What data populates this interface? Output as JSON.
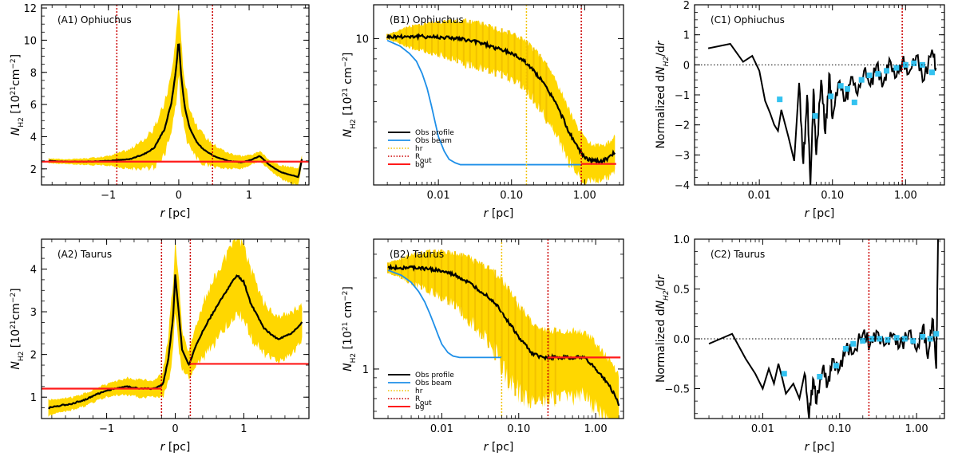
{
  "figure": {
    "colors": {
      "band": "#FFD700",
      "profile": "#000000",
      "beam": "#1E8FE8",
      "bg": "#FF1A1A",
      "rout": "#CC0000",
      "hr": "#F2C200",
      "deriv": "#000000",
      "binned": "#33C2F0"
    }
  },
  "chart_data": [
    {
      "id": "A1",
      "type": "line",
      "title": "(A1) Ophiuchus",
      "xlabel": "r [pc]",
      "ylabel": "N_H2 [10^21 cm^-2]",
      "xlog": false,
      "ylog": false,
      "xlim": [
        -1.95,
        1.85
      ],
      "ylim": [
        1.0,
        12.2
      ],
      "xticks": [
        -1,
        0,
        1
      ],
      "xtick_labels": [
        "−1",
        "0",
        "1"
      ],
      "yticks": [
        2,
        4,
        6,
        8,
        10,
        12
      ],
      "ytick_labels": [
        "2",
        "4",
        "6",
        "8",
        "10",
        "12"
      ],
      "series": [
        {
          "name": "Obs profile",
          "x": [
            -1.85,
            -1.6,
            -1.3,
            -1.0,
            -0.7,
            -0.5,
            -0.35,
            -0.2,
            -0.1,
            -0.03,
            0.0,
            0.03,
            0.08,
            0.15,
            0.25,
            0.35,
            0.5,
            0.7,
            0.9,
            1.05,
            1.15,
            1.3,
            1.45,
            1.6,
            1.7,
            1.75
          ],
          "y": [
            2.5,
            2.45,
            2.45,
            2.5,
            2.6,
            2.9,
            3.3,
            4.5,
            6.2,
            8.5,
            10.2,
            8.0,
            6.0,
            4.6,
            3.7,
            3.2,
            2.8,
            2.5,
            2.4,
            2.6,
            2.8,
            2.2,
            1.8,
            1.6,
            1.5,
            2.6
          ],
          "err": [
            0.15,
            0.15,
            0.2,
            0.3,
            0.6,
            0.9,
            1.2,
            1.6,
            1.8,
            2.2,
            2.4,
            2.0,
            1.7,
            1.3,
            1.0,
            0.9,
            0.7,
            0.5,
            0.4,
            0.3,
            0.3,
            0.3,
            0.4,
            0.5,
            0.6,
            0.3
          ]
        }
      ],
      "hlines": [
        {
          "name": "bg",
          "y": 2.45
        }
      ],
      "vlines": [
        {
          "name": "R_out",
          "x": -0.88
        },
        {
          "name": "R_out",
          "x": 0.48
        }
      ]
    },
    {
      "id": "B1",
      "type": "line",
      "title": "(B1) Ophiuchus",
      "xlabel": "r [pc]",
      "ylabel": "N_H2 [10^21 cm^-2]",
      "xlog": true,
      "ylog": true,
      "xlim": [
        0.0013,
        3.4
      ],
      "ylim": [
        2.0,
        14.5
      ],
      "xticks": [
        0.01,
        0.1,
        1.0
      ],
      "xtick_labels": [
        "0.01",
        "0.10",
        "1.00"
      ],
      "yticks": [
        10
      ],
      "ytick_labels": [
        "10"
      ],
      "series": [
        {
          "name": "Obs profile",
          "x": [
            0.002,
            0.004,
            0.008,
            0.015,
            0.025,
            0.04,
            0.06,
            0.1,
            0.15,
            0.2,
            0.3,
            0.45,
            0.6,
            0.8,
            1.0,
            1.3,
            1.7,
            2.2,
            2.6
          ],
          "y": [
            10.2,
            10.25,
            10.2,
            10.1,
            9.8,
            9.5,
            9.0,
            8.5,
            7.8,
            7.0,
            5.8,
            4.5,
            3.6,
            3.0,
            2.7,
            2.6,
            2.6,
            2.7,
            2.9
          ],
          "err": [
            0.3,
            1.2,
            1.7,
            2.1,
            2.3,
            2.3,
            2.2,
            2.1,
            2.0,
            1.9,
            1.7,
            1.3,
            1.0,
            0.8,
            0.6,
            0.5,
            0.5,
            0.5,
            0.6
          ]
        },
        {
          "name": "Obs beam",
          "x": [
            0.002,
            0.003,
            0.004,
            0.005,
            0.006,
            0.007,
            0.008,
            0.009,
            0.01,
            0.012,
            0.014,
            0.017,
            0.02,
            0.03,
            0.05,
            0.1,
            0.2,
            0.4,
            0.9
          ],
          "y": [
            9.8,
            9.2,
            8.5,
            7.8,
            6.8,
            5.8,
            4.8,
            4.0,
            3.4,
            2.9,
            2.65,
            2.55,
            2.5,
            2.5,
            2.5,
            2.5,
            2.5,
            2.5,
            2.5
          ]
        }
      ],
      "hlines": [
        {
          "name": "bg",
          "y": 2.52,
          "xmin": 0.9,
          "xmax": 2.7
        }
      ],
      "vlines": [
        {
          "name": "hr",
          "x": 0.16
        },
        {
          "name": "R_out",
          "x": 0.9
        }
      ],
      "legend": [
        "Obs profile",
        "Obs beam",
        "hr",
        "R_out",
        "bg"
      ]
    },
    {
      "id": "C1",
      "type": "line",
      "title": "(C1) Ophiuchus",
      "xlabel": "r [pc]",
      "ylabel": "Normalized dN_H2/dr",
      "xlog": true,
      "ylog": false,
      "xlim": [
        0.0013,
        3.4
      ],
      "ylim": [
        -4,
        2
      ],
      "xticks": [
        0.01,
        0.1,
        1.0
      ],
      "xtick_labels": [
        "0.01",
        "0.10",
        "1.00"
      ],
      "yticks": [
        -4,
        -3,
        -2,
        -1,
        0,
        1,
        2
      ],
      "ytick_labels": [
        "−4",
        "−3",
        "−2",
        "−1",
        "0",
        "1",
        "2"
      ],
      "series": [
        {
          "name": "dN/dr",
          "x": [
            0.002,
            0.004,
            0.006,
            0.008,
            0.01,
            0.012,
            0.014,
            0.016,
            0.018,
            0.02,
            0.025,
            0.03,
            0.035,
            0.04,
            0.045,
            0.05,
            0.055,
            0.06,
            0.07,
            0.08,
            0.09,
            0.1,
            0.12,
            0.15,
            0.18,
            0.22,
            0.27,
            0.33,
            0.4,
            0.5,
            0.6,
            0.75,
            0.9,
            1.1,
            1.4,
            1.8,
            2.3,
            2.6
          ],
          "y": [
            0.55,
            0.7,
            0.1,
            0.3,
            -0.2,
            -1.2,
            -1.6,
            -2.0,
            -2.2,
            -1.5,
            -2.4,
            -3.2,
            -0.6,
            -3.3,
            -1.0,
            -4.0,
            -0.8,
            -3.0,
            -0.5,
            -2.3,
            -0.3,
            -1.8,
            -0.6,
            -1.2,
            -0.4,
            -1.0,
            -0.2,
            -0.7,
            0.0,
            -0.6,
            0.2,
            -0.4,
            0.1,
            -0.3,
            0.3,
            -0.5,
            0.5,
            -0.1
          ]
        },
        {
          "name": "binned",
          "x": [
            0.019,
            0.058,
            0.095,
            0.13,
            0.16,
            0.2,
            0.25,
            0.32,
            0.42,
            0.55,
            0.75,
            1.0,
            1.3,
            1.7,
            2.3
          ],
          "y": [
            -1.15,
            -1.7,
            -1.05,
            -0.7,
            -0.8,
            -1.25,
            -0.5,
            -0.35,
            -0.3,
            -0.2,
            -0.1,
            0.0,
            0.05,
            0.0,
            -0.25
          ]
        }
      ],
      "hlines": [
        {
          "name": "zero",
          "y": 0
        }
      ],
      "vlines": [
        {
          "name": "R_out",
          "x": 0.9
        }
      ]
    },
    {
      "id": "A2",
      "type": "line",
      "title": "(A2) Taurus",
      "xlabel": "r [pc]",
      "ylabel": "N_H2 [10^21 cm^-2]",
      "xlog": false,
      "ylog": false,
      "xlim": [
        -1.95,
        1.95
      ],
      "ylim": [
        0.5,
        4.7
      ],
      "xticks": [
        -1,
        0,
        1
      ],
      "xtick_labels": [
        "−1",
        "0",
        "1"
      ],
      "yticks": [
        1,
        2,
        3,
        4
      ],
      "ytick_labels": [
        "1",
        "2",
        "3",
        "4"
      ],
      "series": [
        {
          "name": "Obs profile",
          "x": [
            -1.85,
            -1.7,
            -1.5,
            -1.3,
            -1.1,
            -0.9,
            -0.7,
            -0.5,
            -0.3,
            -0.18,
            -0.1,
            -0.03,
            0.0,
            0.05,
            0.1,
            0.2,
            0.3,
            0.45,
            0.6,
            0.75,
            0.9,
            1.0,
            1.1,
            1.3,
            1.5,
            1.7,
            1.85
          ],
          "y": [
            0.75,
            0.8,
            0.85,
            0.95,
            1.1,
            1.2,
            1.25,
            1.2,
            1.2,
            1.3,
            1.9,
            2.9,
            3.85,
            3.0,
            2.1,
            1.75,
            2.2,
            2.7,
            3.1,
            3.5,
            3.85,
            3.7,
            3.2,
            2.6,
            2.35,
            2.5,
            2.75
          ],
          "err": [
            0.2,
            0.15,
            0.15,
            0.15,
            0.15,
            0.15,
            0.2,
            0.2,
            0.2,
            0.3,
            0.6,
            0.8,
            0.9,
            0.8,
            0.5,
            0.3,
            0.5,
            0.7,
            0.8,
            0.8,
            0.9,
            0.9,
            0.8,
            0.6,
            0.5,
            0.5,
            0.4
          ]
        }
      ],
      "hlines": [
        {
          "name": "bg",
          "y": 1.2,
          "xmin": -1.95,
          "xmax": -0.2
        },
        {
          "name": "bg",
          "y": 1.78,
          "xmin": 0.22,
          "xmax": 1.95
        }
      ],
      "vlines": [
        {
          "name": "R_out",
          "x": -0.2
        },
        {
          "name": "R_out",
          "x": 0.22
        }
      ]
    },
    {
      "id": "B2",
      "type": "line",
      "title": "(B2) Taurus",
      "xlabel": "r [pc]",
      "ylabel": "N_H2 [10^21 cm^-2]",
      "xlog": true,
      "ylog": true,
      "xlim": [
        0.0013,
        2.3
      ],
      "ylim": [
        0.55,
        4.8
      ],
      "xticks": [
        0.01,
        0.1,
        1.0
      ],
      "xtick_labels": [
        "0.01",
        "0.10",
        "1.00"
      ],
      "yticks": [
        1
      ],
      "ytick_labels": [
        "1"
      ],
      "series": [
        {
          "name": "Obs profile",
          "x": [
            0.002,
            0.004,
            0.007,
            0.01,
            0.015,
            0.02,
            0.03,
            0.05,
            0.07,
            0.1,
            0.15,
            0.2,
            0.25,
            0.35,
            0.5,
            0.7,
            0.9,
            1.1,
            1.4,
            1.7,
            2.0
          ],
          "y": [
            3.4,
            3.4,
            3.35,
            3.25,
            3.1,
            2.9,
            2.6,
            2.2,
            1.8,
            1.45,
            1.2,
            1.15,
            1.15,
            1.15,
            1.15,
            1.15,
            1.05,
            0.95,
            0.85,
            0.75,
            0.65
          ],
          "err": [
            0.2,
            0.6,
            0.8,
            0.9,
            0.95,
            1.0,
            1.0,
            1.0,
            0.9,
            0.7,
            0.5,
            0.45,
            0.45,
            0.45,
            0.45,
            0.4,
            0.4,
            0.35,
            0.3,
            0.3,
            0.3
          ]
        },
        {
          "name": "Obs beam",
          "x": [
            0.002,
            0.003,
            0.004,
            0.005,
            0.006,
            0.007,
            0.008,
            0.009,
            0.01,
            0.012,
            0.014,
            0.017,
            0.02,
            0.03,
            0.06
          ],
          "y": [
            3.3,
            3.1,
            2.85,
            2.55,
            2.25,
            1.95,
            1.7,
            1.5,
            1.35,
            1.22,
            1.17,
            1.15,
            1.15,
            1.15,
            1.15
          ]
        }
      ],
      "hlines": [
        {
          "name": "bg",
          "y": 1.15,
          "xmin": 0.24,
          "xmax": 2.1
        }
      ],
      "vlines": [
        {
          "name": "hr",
          "x": 0.06
        },
        {
          "name": "R_out",
          "x": 0.24
        }
      ],
      "legend": [
        "Obs profile",
        "Obs beam",
        "hr",
        "R_out",
        "bg"
      ]
    },
    {
      "id": "C2",
      "type": "line",
      "title": "(C2) Taurus",
      "xlabel": "r [pc]",
      "ylabel": "Normalized dN_H2/dr",
      "xlog": true,
      "ylog": false,
      "xlim": [
        0.0013,
        2.3
      ],
      "ylim": [
        -0.8,
        1.0
      ],
      "xticks": [
        0.01,
        0.1,
        1.0
      ],
      "xtick_labels": [
        "0.01",
        "0.10",
        "1.00"
      ],
      "yticks": [
        -0.5,
        0.0,
        0.5,
        1.0
      ],
      "ytick_labels": [
        "−0.5",
        "0.0",
        "0.5",
        "1.0"
      ],
      "series": [
        {
          "name": "dN/dr",
          "x": [
            0.002,
            0.004,
            0.006,
            0.008,
            0.01,
            0.012,
            0.014,
            0.016,
            0.018,
            0.02,
            0.025,
            0.03,
            0.035,
            0.04,
            0.045,
            0.05,
            0.06,
            0.07,
            0.08,
            0.1,
            0.12,
            0.15,
            0.2,
            0.25,
            0.3,
            0.4,
            0.5,
            0.6,
            0.8,
            1.0,
            1.2,
            1.4,
            1.6,
            1.8,
            1.9
          ],
          "y": [
            -0.05,
            0.05,
            -0.2,
            -0.35,
            -0.5,
            -0.3,
            -0.45,
            -0.25,
            -0.4,
            -0.55,
            -0.45,
            -0.6,
            -0.35,
            -0.8,
            -0.4,
            -0.65,
            -0.3,
            -0.45,
            -0.2,
            -0.3,
            -0.1,
            -0.15,
            0.05,
            -0.05,
            0.08,
            -0.05,
            0.05,
            -0.08,
            0.08,
            -0.12,
            0.12,
            -0.2,
            0.2,
            -0.3,
            1.0
          ]
        },
        {
          "name": "binned",
          "x": [
            0.019,
            0.055,
            0.09,
            0.12,
            0.15,
            0.2,
            0.26,
            0.33,
            0.42,
            0.55,
            0.7,
            0.9,
            1.2,
            1.5,
            1.8
          ],
          "y": [
            -0.35,
            -0.38,
            -0.27,
            -0.1,
            -0.05,
            -0.02,
            0.0,
            0.0,
            -0.01,
            0.01,
            0.0,
            -0.02,
            0.02,
            0.0,
            0.05
          ]
        }
      ],
      "hlines": [
        {
          "name": "zero",
          "y": 0
        }
      ],
      "vlines": [
        {
          "name": "R_out",
          "x": 0.24
        }
      ]
    }
  ]
}
